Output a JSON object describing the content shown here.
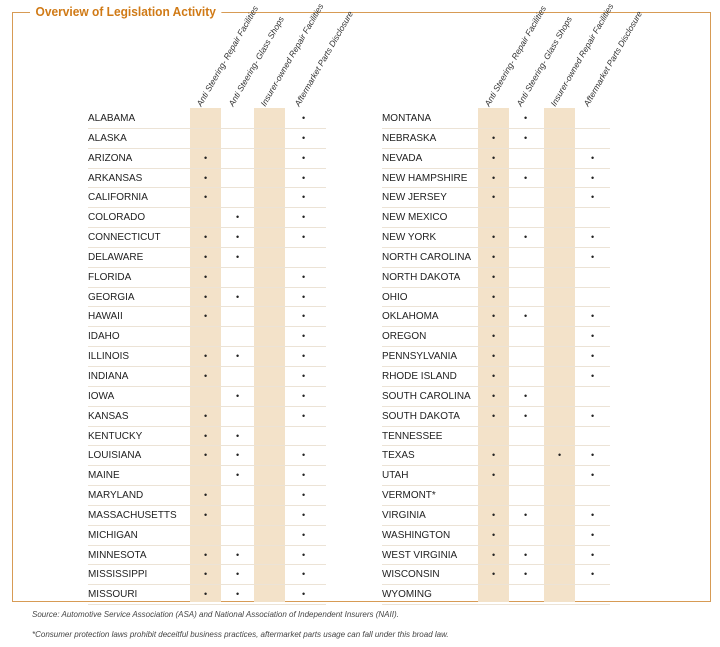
{
  "title": "Overview of Legislation Activity",
  "columns": [
    "Anti Steering- Repair Facilities",
    "Anti Steering- Glass Shops",
    "Insurer-owned Repair Facilities",
    "Aftermarket Parts Disclosure"
  ],
  "mark": "•",
  "left_states": [
    {
      "name": "ALABAMA",
      "marks": [
        false,
        false,
        false,
        true
      ]
    },
    {
      "name": "ALASKA",
      "marks": [
        false,
        false,
        false,
        true
      ]
    },
    {
      "name": "ARIZONA",
      "marks": [
        true,
        false,
        false,
        true
      ]
    },
    {
      "name": "ARKANSAS",
      "marks": [
        true,
        false,
        false,
        true
      ]
    },
    {
      "name": "CALIFORNIA",
      "marks": [
        true,
        false,
        false,
        true
      ]
    },
    {
      "name": "COLORADO",
      "marks": [
        false,
        true,
        false,
        true
      ]
    },
    {
      "name": "CONNECTICUT",
      "marks": [
        true,
        true,
        false,
        true
      ]
    },
    {
      "name": "DELAWARE",
      "marks": [
        true,
        true,
        false,
        false
      ]
    },
    {
      "name": "FLORIDA",
      "marks": [
        true,
        false,
        false,
        true
      ]
    },
    {
      "name": "GEORGIA",
      "marks": [
        true,
        true,
        false,
        true
      ]
    },
    {
      "name": "HAWAII",
      "marks": [
        true,
        false,
        false,
        true
      ]
    },
    {
      "name": "IDAHO",
      "marks": [
        false,
        false,
        false,
        true
      ]
    },
    {
      "name": "ILLINOIS",
      "marks": [
        true,
        true,
        false,
        true
      ]
    },
    {
      "name": "INDIANA",
      "marks": [
        true,
        false,
        false,
        true
      ]
    },
    {
      "name": "IOWA",
      "marks": [
        false,
        true,
        false,
        true
      ]
    },
    {
      "name": "KANSAS",
      "marks": [
        true,
        false,
        false,
        true
      ]
    },
    {
      "name": "KENTUCKY",
      "marks": [
        true,
        true,
        false,
        false
      ]
    },
    {
      "name": "LOUISIANA",
      "marks": [
        true,
        true,
        false,
        true
      ]
    },
    {
      "name": "MAINE",
      "marks": [
        false,
        true,
        false,
        true
      ]
    },
    {
      "name": "MARYLAND",
      "marks": [
        true,
        false,
        false,
        true
      ]
    },
    {
      "name": "MASSACHUSETTS",
      "marks": [
        true,
        false,
        false,
        true
      ]
    },
    {
      "name": "MICHIGAN",
      "marks": [
        false,
        false,
        false,
        true
      ]
    },
    {
      "name": "MINNESOTA",
      "marks": [
        true,
        true,
        false,
        true
      ]
    },
    {
      "name": "MISSISSIPPI",
      "marks": [
        true,
        true,
        false,
        true
      ]
    },
    {
      "name": "MISSOURI",
      "marks": [
        true,
        true,
        false,
        true
      ]
    }
  ],
  "right_states": [
    {
      "name": "MONTANA",
      "marks": [
        false,
        true,
        false,
        false
      ]
    },
    {
      "name": "NEBRASKA",
      "marks": [
        true,
        true,
        false,
        false
      ]
    },
    {
      "name": "NEVADA",
      "marks": [
        true,
        false,
        false,
        true
      ]
    },
    {
      "name": "NEW HAMPSHIRE",
      "marks": [
        true,
        true,
        false,
        true
      ]
    },
    {
      "name": "NEW JERSEY",
      "marks": [
        true,
        false,
        false,
        true
      ]
    },
    {
      "name": "NEW MEXICO",
      "marks": [
        false,
        false,
        false,
        false
      ]
    },
    {
      "name": "NEW YORK",
      "marks": [
        true,
        true,
        false,
        true
      ]
    },
    {
      "name": "NORTH CAROLINA",
      "marks": [
        true,
        false,
        false,
        true
      ]
    },
    {
      "name": "NORTH DAKOTA",
      "marks": [
        true,
        false,
        false,
        false
      ]
    },
    {
      "name": "OHIO",
      "marks": [
        true,
        false,
        false,
        false
      ]
    },
    {
      "name": "OKLAHOMA",
      "marks": [
        true,
        true,
        false,
        true
      ]
    },
    {
      "name": "OREGON",
      "marks": [
        true,
        false,
        false,
        true
      ]
    },
    {
      "name": "PENNSYLVANIA",
      "marks": [
        true,
        false,
        false,
        true
      ]
    },
    {
      "name": "RHODE ISLAND",
      "marks": [
        true,
        false,
        false,
        true
      ]
    },
    {
      "name": "SOUTH CAROLINA",
      "marks": [
        true,
        true,
        false,
        false
      ]
    },
    {
      "name": "SOUTH DAKOTA",
      "marks": [
        true,
        true,
        false,
        true
      ]
    },
    {
      "name": "TENNESSEE",
      "marks": [
        false,
        false,
        false,
        false
      ]
    },
    {
      "name": "TEXAS",
      "marks": [
        true,
        false,
        true,
        true
      ]
    },
    {
      "name": "UTAH",
      "marks": [
        true,
        false,
        false,
        true
      ]
    },
    {
      "name": "VERMONT*",
      "marks": [
        false,
        false,
        false,
        false
      ]
    },
    {
      "name": "VIRGINIA",
      "marks": [
        true,
        true,
        false,
        true
      ]
    },
    {
      "name": "WASHINGTON",
      "marks": [
        true,
        false,
        false,
        true
      ]
    },
    {
      "name": "WEST VIRGINIA",
      "marks": [
        true,
        true,
        false,
        true
      ]
    },
    {
      "name": "WISCONSIN",
      "marks": [
        true,
        true,
        false,
        true
      ]
    },
    {
      "name": "WYOMING",
      "marks": [
        false,
        false,
        false,
        false
      ]
    }
  ],
  "source": "Source: Automotive Service Association (ASA) and National Association of Independent Insurers (NAII).",
  "footnote": "*Consumer protection laws prohibit deceitful business practices, aftermarket parts usage can fall under this broad law."
}
